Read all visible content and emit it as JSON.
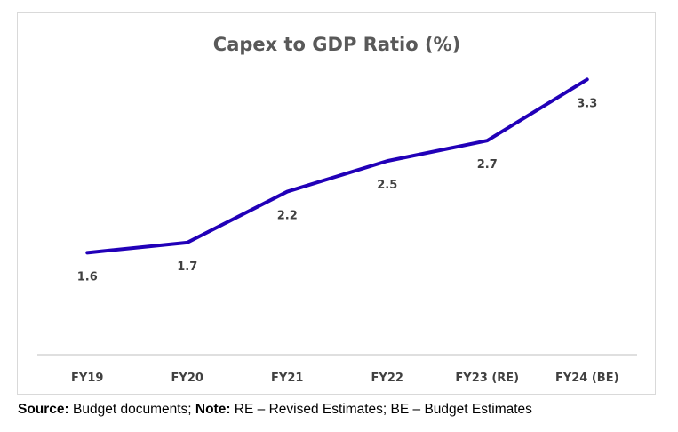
{
  "chart_data": {
    "type": "line",
    "title": "Capex to GDP Ratio (%)",
    "categories": [
      "FY19",
      "FY20",
      "FY21",
      "FY22",
      "FY23 (RE)",
      "FY24 (BE)"
    ],
    "series": [
      {
        "values": [
          1.6,
          1.7,
          2.2,
          2.5,
          2.7,
          3.3
        ],
        "color": "#2100b8"
      }
    ],
    "xlabel": "",
    "ylabel": "",
    "ylim": [
      0.6,
      3.6
    ],
    "grid": false,
    "legend": "none",
    "axis_color": "#bfbfbf"
  },
  "footer": {
    "source_label": "Source:",
    "source_text": " Budget documents; ",
    "note_label": "Note:",
    "note_text": " RE – Revised Estimates; BE – Budget Estimates"
  }
}
